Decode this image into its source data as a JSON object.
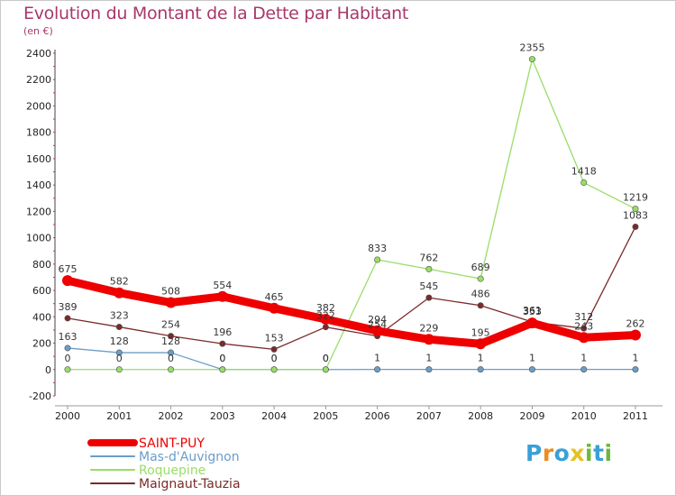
{
  "chart_data": {
    "type": "line",
    "title": "Evolution du Montant de la Dette par Habitant",
    "subtitle": "(en €)",
    "xlabel": "",
    "ylabel": "(en €)",
    "x": [
      2000,
      2001,
      2002,
      2003,
      2004,
      2005,
      2006,
      2007,
      2008,
      2009,
      2010,
      2011
    ],
    "ylim": [
      -200,
      2400
    ],
    "yticks": [
      -200,
      0,
      200,
      400,
      600,
      800,
      1000,
      1200,
      1400,
      1600,
      1800,
      2000,
      2200,
      2400
    ],
    "grid": false,
    "legend_position": "bottom-left",
    "series": [
      {
        "name": "SAINT-PUY",
        "color": "#ee0000",
        "width": 9,
        "values": [
          675,
          582,
          508,
          554,
          465,
          382,
          294,
          229,
          195,
          353,
          243,
          262
        ]
      },
      {
        "name": "Mas-d'Auvignon",
        "color": "#6b9dc8",
        "width": 1.3,
        "values": [
          163,
          128,
          128,
          0,
          0,
          0,
          1,
          1,
          1,
          1,
          1,
          1
        ]
      },
      {
        "name": "Roquepine",
        "color": "#99dd66",
        "width": 1.3,
        "values": [
          0,
          0,
          0,
          0,
          0,
          0,
          833,
          762,
          689,
          2355,
          1418,
          1219
        ]
      },
      {
        "name": "Maignaut-Tauzia",
        "color": "#7a2a2a",
        "width": 1.3,
        "values": [
          389,
          323,
          254,
          196,
          153,
          322,
          254,
          545,
          486,
          361,
          312,
          1083
        ]
      }
    ]
  },
  "logo": {
    "letters": [
      "P",
      "r",
      "o",
      "x",
      "i",
      "t",
      "i"
    ],
    "colors": [
      "#3aa0d8",
      "#f08c1c",
      "#3aa0d8",
      "#e8c020",
      "#6cb83c",
      "#3aa0d8",
      "#6cb83c"
    ]
  }
}
